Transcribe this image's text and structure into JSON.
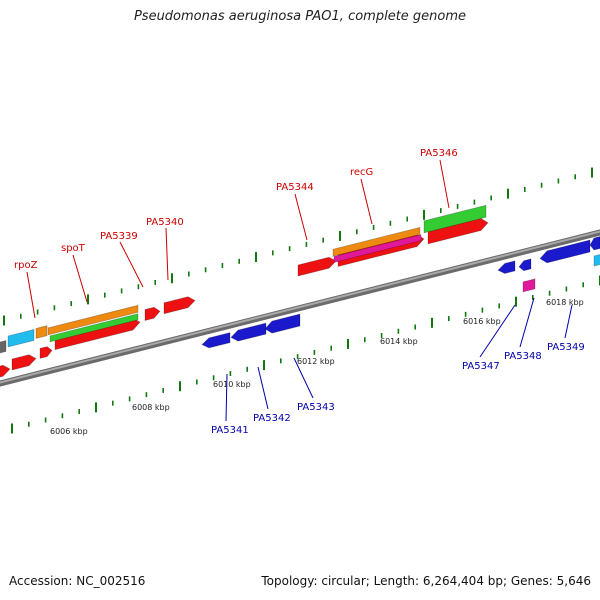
{
  "title": "Pseudomonas aeruginosa PAO1, complete genome",
  "accession": "Accession: NC_002516",
  "summary": "Topology: circular; Length: 6,264,404 bp; Genes: 5,646",
  "colors": {
    "forward_label": "#cc0000",
    "reverse_label": "#0000aa",
    "backbone": "#888888",
    "tick": "#117711",
    "red": "#ee1111",
    "blue": "#1a1acc",
    "green": "#33cc33",
    "orange": "#ee8a11",
    "magenta": "#e0189a",
    "cyan": "#22bbee"
  },
  "scale_labels": [
    "6006 kbp",
    "6008 kbp",
    "6010 kbp",
    "6012 kbp",
    "6014 kbp",
    "6016 kbp",
    "6018 kbp"
  ],
  "forward_gene_labels": [
    "rpoZ",
    "spoT",
    "PA5339",
    "PA5340",
    "PA5344",
    "recG",
    "PA5346"
  ],
  "reverse_gene_labels": [
    "PA5341",
    "PA5342",
    "PA5343",
    "PA5347",
    "PA5348",
    "PA5349"
  ]
}
